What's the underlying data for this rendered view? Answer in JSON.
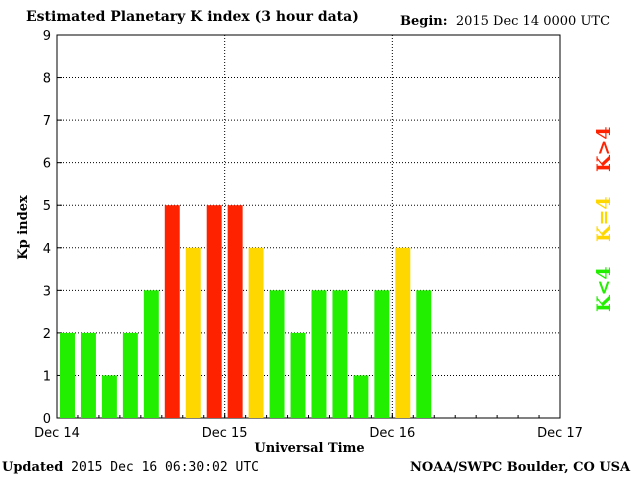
{
  "header": {
    "title": "Estimated Planetary K index (3 hour data)",
    "begin_label": "Begin:",
    "begin_value": "2015 Dec 14 0000 UTC"
  },
  "footer": {
    "updated_label": "Updated",
    "updated_value": "2015 Dec 16 06:30:02 UTC",
    "credit": "NOAA/SWPC Boulder, CO USA"
  },
  "legend": {
    "green": "K<4",
    "yellow": "K=4",
    "red": "K>4"
  },
  "colors": {
    "green": "#22ee00",
    "yellow": "#ffd700",
    "red": "#ff2200"
  },
  "chart_data": {
    "type": "bar",
    "xlabel": "Universal Time",
    "ylabel": "Kp index",
    "ylim": [
      0,
      9
    ],
    "yticks": [
      0,
      1,
      2,
      3,
      4,
      5,
      6,
      7,
      8,
      9
    ],
    "xlim_hours": [
      0,
      72
    ],
    "xticks": [
      {
        "hour": 0,
        "label": "Dec 14"
      },
      {
        "hour": 24,
        "label": "Dec 15"
      },
      {
        "hour": 48,
        "label": "Dec 16"
      },
      {
        "hour": 72,
        "label": "Dec 17"
      }
    ],
    "interval_hours": 3,
    "grid": true,
    "values": [
      2,
      2,
      1,
      2,
      3,
      5,
      4,
      5,
      5,
      4,
      3,
      2,
      3,
      3,
      1,
      3,
      4,
      3
    ]
  }
}
